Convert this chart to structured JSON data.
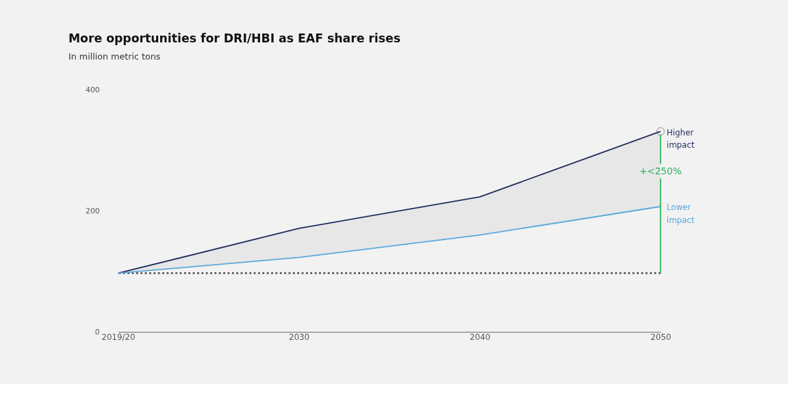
{
  "chart_data": {
    "type": "line",
    "title": "More opportunities for DRI/HBI as EAF share rises",
    "subtitle": "In million metric tons",
    "categories": [
      "2019/20",
      "2030",
      "2040",
      "2050"
    ],
    "series": [
      {
        "name": "Higher impact",
        "color": "#1f2d5c",
        "values": [
          97,
          171,
          223,
          331
        ]
      },
      {
        "name": "Lower impact",
        "color": "#5aa8dc",
        "values": [
          97,
          123,
          160,
          207
        ]
      }
    ],
    "ylim": [
      0,
      400
    ],
    "yticks": [
      0,
      200,
      400
    ],
    "grid": false,
    "marker": "none",
    "line_style": "solid",
    "ref_lines": [
      {
        "axis": "y",
        "value": 97,
        "color": "#333333",
        "line_style": "dotted"
      }
    ],
    "annotations": [
      "+<250%"
    ]
  }
}
